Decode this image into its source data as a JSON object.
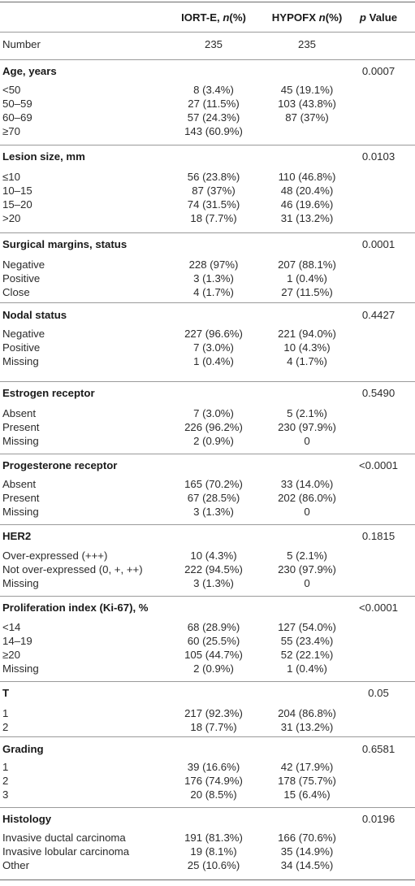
{
  "header": {
    "col1_prefix": "IORT-E, ",
    "col1_italic": "n",
    "col1_suffix": "(%)",
    "col2_prefix": "HYPOFX ",
    "col2_italic": "n",
    "col2_suffix": "(%)",
    "col3_italic": "p",
    "col3_suffix": " Value"
  },
  "number_row": {
    "label": "Number",
    "v1": "235",
    "v2": "235"
  },
  "sections": [
    {
      "title": "Age, years",
      "p": "0.0007",
      "rows": [
        {
          "label": "<50",
          "v1": "8 (3.4%)",
          "v2": "45 (19.1%)"
        },
        {
          "label": "50–59",
          "v1": "27 (11.5%)",
          "v2": "103 (43.8%)"
        },
        {
          "label": "60–69",
          "v1": "57 (24.3%)",
          "v2": "87 (37%)"
        },
        {
          "label": "≥70",
          "v1": "143 (60.9%)",
          "v2": ""
        }
      ]
    },
    {
      "title": "Lesion size, mm",
      "p": "0.0103",
      "rows": [
        {
          "label": "≤10",
          "v1": "56 (23.8%)",
          "v2": "110 (46.8%)"
        },
        {
          "label": "10–15",
          "v1": "87 (37%)",
          "v2": "48 (20.4%)"
        },
        {
          "label": "15–20",
          "v1": "74 (31.5%)",
          "v2": "46 (19.6%)"
        },
        {
          "label": ">20",
          "v1": "18 (7.7%)",
          "v2": "31 (13.2%)"
        }
      ]
    },
    {
      "title": "Surgical margins, status",
      "p": "0.0001",
      "rows": [
        {
          "label": "Negative",
          "v1": "228 (97%)",
          "v2": "207 (88.1%)"
        },
        {
          "label": "Positive",
          "v1": "3 (1.3%)",
          "v2": "1 (0.4%)"
        },
        {
          "label": "Close",
          "v1": "4 (1.7%)",
          "v2": "27 (11.5%)"
        }
      ]
    },
    {
      "title": "Nodal status",
      "p": "0.4427",
      "rows": [
        {
          "label": "Negative",
          "v1": "227 (96.6%)",
          "v2": "221 (94.0%)"
        },
        {
          "label": "Positive",
          "v1": "7 (3.0%)",
          "v2": "10 (4.3%)"
        },
        {
          "label": "Missing",
          "v1": "1 (0.4%)",
          "v2": "4 (1.7%)"
        }
      ]
    },
    {
      "title": "Estrogen receptor",
      "p": "0.5490",
      "rows": [
        {
          "label": "Absent",
          "v1": "7 (3.0%)",
          "v2": "5 (2.1%)"
        },
        {
          "label": "Present",
          "v1": "226 (96.2%)",
          "v2": "230 (97.9%)"
        },
        {
          "label": "Missing",
          "v1": "2 (0.9%)",
          "v2": "0"
        }
      ]
    },
    {
      "title": "Progesterone receptor",
      "p": "<0.0001",
      "rows": [
        {
          "label": "Absent",
          "v1": "165 (70.2%)",
          "v2": "33 (14.0%)"
        },
        {
          "label": "Present",
          "v1": "67 (28.5%)",
          "v2": "202 (86.0%)"
        },
        {
          "label": "Missing",
          "v1": "3 (1.3%)",
          "v2": "0"
        }
      ]
    },
    {
      "title": "HER2",
      "p": "0.1815",
      "rows": [
        {
          "label": "Over-expressed (+++)",
          "v1": "10 (4.3%)",
          "v2": "5 (2.1%)"
        },
        {
          "label": "Not over-expressed (0, +, ++)",
          "v1": "222 (94.5%)",
          "v2": "230 (97.9%)"
        },
        {
          "label": "Missing",
          "v1": "3 (1.3%)",
          "v2": "0"
        }
      ]
    },
    {
      "title": "Proliferation index (Ki-67), %",
      "p": "<0.0001",
      "rows": [
        {
          "label": "<14",
          "v1": "68 (28.9%)",
          "v2": "127 (54.0%)"
        },
        {
          "label": "14–19",
          "v1": "60 (25.5%)",
          "v2": "55 (23.4%)"
        },
        {
          "label": "≥20",
          "v1": "105 (44.7%)",
          "v2": "52 (22.1%)"
        },
        {
          "label": "Missing",
          "v1": "2 (0.9%)",
          "v2": "1 (0.4%)"
        }
      ]
    },
    {
      "title": "T",
      "p": "0.05",
      "rows": [
        {
          "label": "1",
          "v1": "217 (92.3%)",
          "v2": "204 (86.8%)"
        },
        {
          "label": "2",
          "v1": "18 (7.7%)",
          "v2": "31 (13.2%)"
        }
      ]
    },
    {
      "title": "Grading",
      "p": "0.6581",
      "rows": [
        {
          "label": "1",
          "v1": "39 (16.6%)",
          "v2": "42 (17.9%)"
        },
        {
          "label": "2",
          "v1": "176 (74.9%)",
          "v2": "178 (75.7%)"
        },
        {
          "label": "3",
          "v1": "20 (8.5%)",
          "v2": "15 (6.4%)"
        }
      ]
    },
    {
      "title": "Histology",
      "p": "0.0196",
      "rows": [
        {
          "label": "Invasive ductal carcinoma",
          "v1": "191 (81.3%)",
          "v2": "166 (70.6%)"
        },
        {
          "label": "Invasive lobular carcinoma",
          "v1": "19 (8.1%)",
          "v2": "35 (14.9%)"
        },
        {
          "label": "Other",
          "v1": "25 (10.6%)",
          "v2": "34 (14.5%)"
        }
      ]
    }
  ]
}
